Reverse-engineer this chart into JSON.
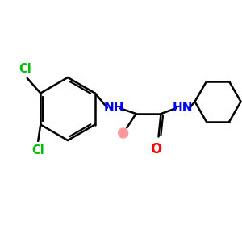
{
  "background_color": "#ffffff",
  "bond_color": "#000000",
  "cl_color": "#00bb00",
  "nh_color": "#0000ff",
  "o_color": "#ff0000",
  "methyl_dot_color": "#ff9999",
  "line_width": 1.8,
  "figsize": [
    3.0,
    3.0
  ],
  "dpi": 100,
  "xlim": [
    0,
    10
  ],
  "ylim": [
    0,
    10
  ]
}
